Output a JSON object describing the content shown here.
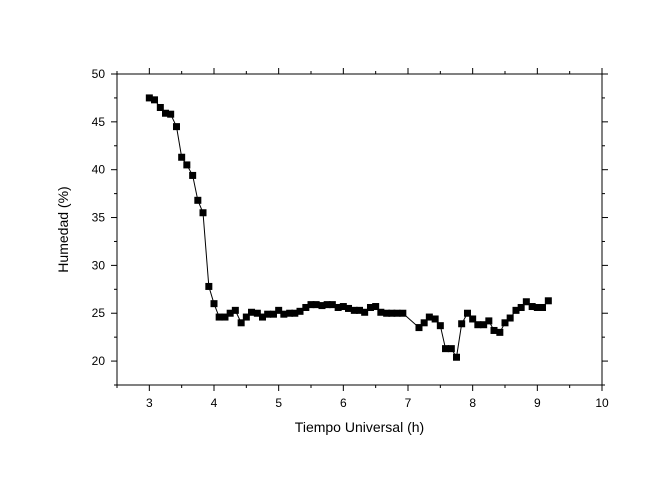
{
  "chart_data": {
    "type": "line",
    "title": "",
    "xlabel": "Tiempo Universal (h)",
    "ylabel": "Humedad (%)",
    "xlim": [
      2.5,
      10
    ],
    "ylim": [
      17.5,
      50
    ],
    "xticks": [
      "3",
      "4",
      "5",
      "6",
      "7",
      "8",
      "9",
      "10"
    ],
    "yticks": [
      "20",
      "25",
      "30",
      "35",
      "40",
      "45",
      "50"
    ],
    "grid": false,
    "legend": "none",
    "marker": "square",
    "color": "#000000",
    "series": [
      {
        "x": [
          3.0,
          3.08,
          3.17,
          3.25,
          3.33,
          3.42,
          3.5,
          3.58,
          3.67,
          3.75,
          3.83,
          3.92,
          4.0,
          4.08,
          4.17,
          4.25,
          4.33,
          4.42,
          4.5,
          4.58,
          4.67,
          4.75,
          4.83,
          4.92,
          5.0,
          5.08,
          5.17,
          5.25,
          5.33,
          5.42,
          5.5,
          5.58,
          5.67,
          5.75,
          5.83,
          5.92,
          6.0,
          6.08,
          6.17,
          6.25,
          6.33,
          6.42,
          6.5,
          6.58,
          6.67,
          6.75,
          6.83,
          6.92,
          7.17,
          7.25,
          7.33,
          7.42,
          7.5,
          7.58,
          7.67,
          7.75,
          7.83,
          7.92,
          8.0,
          8.08,
          8.17,
          8.25,
          8.33,
          8.42,
          8.5,
          8.58,
          8.67,
          8.75,
          8.83,
          8.92,
          9.0,
          9.08,
          9.17
        ],
        "values": [
          47.5,
          47.3,
          46.5,
          45.9,
          45.8,
          44.5,
          41.3,
          40.5,
          39.4,
          36.8,
          35.5,
          27.8,
          26.0,
          24.6,
          24.6,
          25.0,
          25.3,
          24.0,
          24.6,
          25.1,
          25.0,
          24.6,
          24.9,
          24.9,
          25.3,
          24.9,
          25.0,
          25.0,
          25.2,
          25.6,
          25.9,
          25.9,
          25.8,
          25.9,
          25.9,
          25.6,
          25.7,
          25.5,
          25.3,
          25.3,
          25.1,
          25.6,
          25.7,
          25.1,
          25.0,
          25.0,
          25.0,
          25.0,
          23.5,
          24.0,
          24.6,
          24.4,
          23.7,
          21.3,
          21.3,
          20.4,
          23.9,
          25.0,
          24.4,
          23.8,
          23.8,
          24.2,
          23.2,
          23.0,
          24.0,
          24.5,
          25.3,
          25.6,
          26.2,
          25.7,
          25.6,
          25.6,
          26.3
        ]
      }
    ]
  }
}
